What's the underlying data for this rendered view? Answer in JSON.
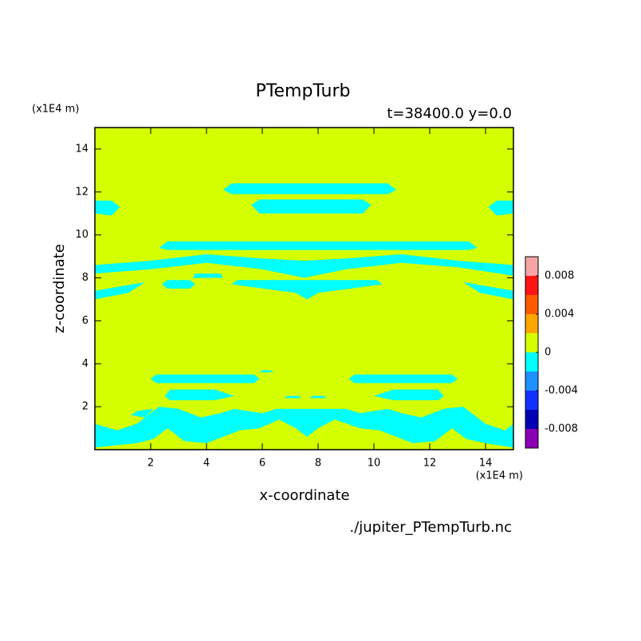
{
  "chart_data": {
    "type": "contour",
    "title": "PTempTurb",
    "subtitle": "t=38400.0 y=0.0",
    "x_label": "x-coordinate",
    "y_label": "z-coordinate",
    "x_unit": "(x1E4 m)",
    "y_unit": "(x1E4 m)",
    "source": "./jupiter_PTempTurb.nc",
    "xlim": [
      0,
      15
    ],
    "ylim": [
      0,
      15
    ],
    "xticks": [
      2,
      4,
      6,
      8,
      10,
      12,
      14
    ],
    "yticks": [
      2,
      4,
      6,
      8,
      10,
      12,
      14
    ],
    "levels": [
      -0.01,
      -0.008,
      -0.006,
      -0.004,
      -0.002,
      0,
      0.002,
      0.004,
      0.006,
      0.008,
      0.01
    ],
    "colors": [
      "#8a00b4",
      "#0000b4",
      "#1030ff",
      "#1e90ff",
      "#00ffff",
      "#d4ff00",
      "#ffa500",
      "#ff5a00",
      "#ff1414",
      "#f5a5a5"
    ],
    "colorbar_ticks": [
      0.008,
      0.004,
      0,
      -0.004,
      -0.008
    ],
    "background_level": 0,
    "regions": [
      {
        "level": -0.002,
        "x": [
          4.6,
          4.9,
          10.5,
          10.8,
          10.5,
          4.9
        ],
        "z": [
          12.1,
          12.4,
          12.4,
          12.1,
          11.9,
          11.9
        ]
      },
      {
        "level": -0.002,
        "x": [
          5.6,
          5.9,
          9.6,
          9.9,
          9.6,
          5.9
        ],
        "z": [
          11.4,
          11.65,
          11.65,
          11.4,
          11.0,
          11.0
        ]
      },
      {
        "level": -0.002,
        "x": [
          0,
          0,
          0.6,
          0.9,
          0.6
        ],
        "z": [
          11.0,
          11.6,
          11.6,
          11.3,
          10.9
        ]
      },
      {
        "level": -0.002,
        "x": [
          15,
          15,
          14.4,
          14.1,
          14.4
        ],
        "z": [
          11.0,
          11.6,
          11.6,
          11.3,
          10.9
        ]
      },
      {
        "level": -0.002,
        "x": [
          2.3,
          2.6,
          13.4,
          13.7,
          13.4,
          2.6
        ],
        "z": [
          9.4,
          9.7,
          9.7,
          9.4,
          9.3,
          9.3
        ]
      },
      {
        "level": -0.002,
        "x": [
          0,
          0,
          2,
          4,
          6,
          7.5,
          9,
          11,
          13,
          15,
          15,
          13,
          11,
          9,
          7.5,
          6,
          4,
          2
        ],
        "z": [
          8.2,
          8.6,
          8.8,
          9.1,
          8.9,
          8.8,
          8.9,
          9.1,
          8.8,
          8.6,
          8.1,
          8.5,
          8.7,
          8.4,
          8.0,
          8.4,
          8.7,
          8.4
        ]
      },
      {
        "level": -0.002,
        "x": [
          0,
          0,
          1.8,
          1.2
        ],
        "z": [
          7.0,
          7.4,
          7.8,
          7.3
        ]
      },
      {
        "level": -0.002,
        "x": [
          2.4,
          2.6,
          3.4,
          3.6,
          3.4,
          2.6
        ],
        "z": [
          7.7,
          7.9,
          7.9,
          7.7,
          7.5,
          7.5
        ]
      },
      {
        "level": -0.002,
        "x": [
          4.9,
          5.1,
          10.1,
          10.3,
          8,
          7.6,
          7.2
        ],
        "z": [
          7.7,
          7.9,
          7.9,
          7.7,
          7.3,
          7.0,
          7.3
        ]
      },
      {
        "level": -0.002,
        "x": [
          15,
          15,
          13.2,
          13.8
        ],
        "z": [
          7.0,
          7.4,
          7.8,
          7.3
        ]
      },
      {
        "level": -0.002,
        "x": [
          3.5,
          3.6,
          4.5,
          4.6
        ],
        "z": [
          8.0,
          8.2,
          8.2,
          8.0
        ]
      },
      {
        "level": -0.002,
        "x": [
          2.0,
          2.2,
          5.7,
          5.9,
          5.7,
          2.2
        ],
        "z": [
          3.3,
          3.5,
          3.5,
          3.3,
          3.1,
          3.1
        ]
      },
      {
        "level": -0.002,
        "x": [
          9.1,
          9.3,
          12.8,
          13,
          12.8,
          9.3
        ],
        "z": [
          3.3,
          3.5,
          3.5,
          3.3,
          3.1,
          3.1
        ]
      },
      {
        "level": -0.002,
        "x": [
          5.9,
          6,
          6.3,
          6.4
        ],
        "z": [
          3.6,
          3.7,
          3.7,
          3.6
        ]
      },
      {
        "level": -0.002,
        "x": [
          2.5,
          2.7,
          4.3,
          5.0,
          4.3,
          2.7
        ],
        "z": [
          2.5,
          2.8,
          2.8,
          2.5,
          2.3,
          2.3
        ]
      },
      {
        "level": -0.002,
        "x": [
          10,
          10.7,
          12.3,
          12.5,
          12.3,
          10.7
        ],
        "z": [
          2.5,
          2.8,
          2.8,
          2.5,
          2.3,
          2.3
        ]
      },
      {
        "level": -0.002,
        "x": [
          6.8,
          6.9,
          7.3,
          7.4
        ],
        "z": [
          2.4,
          2.5,
          2.5,
          2.4
        ]
      },
      {
        "level": -0.002,
        "x": [
          7.7,
          7.8,
          8.2,
          8.3
        ],
        "z": [
          2.4,
          2.5,
          2.5,
          2.4
        ]
      },
      {
        "level": -0.002,
        "x": [
          1.3,
          1.5,
          2.1,
          1.8
        ],
        "z": [
          1.6,
          1.8,
          1.9,
          1.5
        ]
      },
      {
        "level": -0.002,
        "x": [
          0,
          0,
          0.8,
          1.5,
          2.3,
          3,
          3.8,
          4.5,
          5,
          6,
          6.5,
          9,
          9.5,
          10.5,
          11,
          11.7,
          12.5,
          13.2,
          14,
          14.7,
          15,
          15,
          14,
          13.3,
          12.8,
          12.2,
          11.4,
          10.2,
          9.5,
          8.6,
          8,
          7.6,
          7.2,
          6.6,
          5.9,
          5.2,
          4,
          3.2,
          2.6,
          2.1,
          1.5
        ],
        "z": [
          0.1,
          1.2,
          0.9,
          1.2,
          2.0,
          1.9,
          1.5,
          1.7,
          1.9,
          1.7,
          1.9,
          1.9,
          1.7,
          1.9,
          1.7,
          1.5,
          1.9,
          2.0,
          1.2,
          0.9,
          1.2,
          0.1,
          0.3,
          0.5,
          1.0,
          0.4,
          0.3,
          0.9,
          1.0,
          1.4,
          1.0,
          0.6,
          1.0,
          1.4,
          1.0,
          0.9,
          0.3,
          0.4,
          1.0,
          0.5,
          0.3
        ]
      }
    ]
  }
}
